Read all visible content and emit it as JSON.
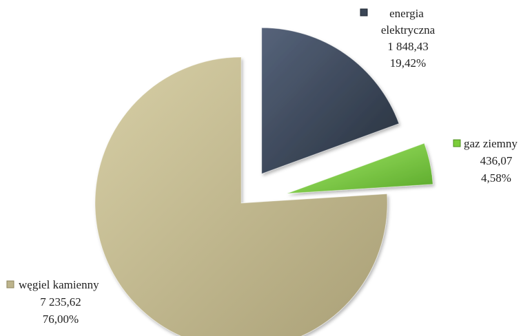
{
  "chart_data": {
    "type": "pie",
    "exploded": true,
    "slices": [
      {
        "name_lines": [
          "energia",
          "elektryczna"
        ],
        "value": 1848.43,
        "value_text": "1 848,43",
        "percent": 19.42,
        "percent_text": "19,42%",
        "color": "#3b4656"
      },
      {
        "name_lines": [
          "gaz ziemny"
        ],
        "value": 436.07,
        "value_text": "436,07",
        "percent": 4.58,
        "percent_text": "4,58%",
        "color": "#7ccd3a"
      },
      {
        "name_lines": [
          "węgiel kamienny"
        ],
        "value": 7235.62,
        "value_text": "7 235,62",
        "percent": 76.0,
        "percent_text": "76,00%",
        "color": "#bdb48c"
      }
    ]
  }
}
